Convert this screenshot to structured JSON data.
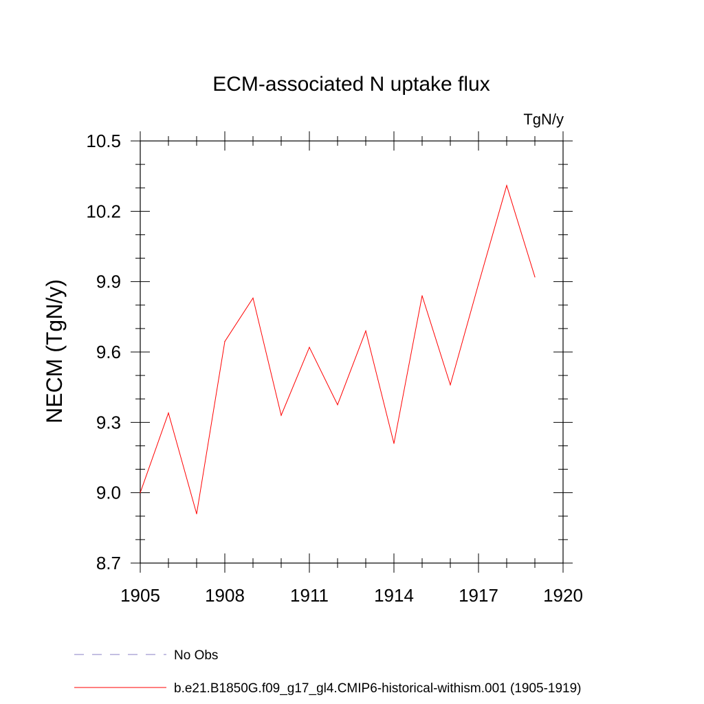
{
  "chart_data": {
    "type": "line",
    "title": "ECM-associated N uptake flux",
    "units_label": "TgN/y",
    "ylabel": "NECM  (TgN/y)",
    "xlabel": "",
    "xlim": [
      1905,
      1920
    ],
    "ylim": [
      8.7,
      10.5
    ],
    "x_ticks": [
      1905,
      1908,
      1911,
      1914,
      1917,
      1920
    ],
    "x_tick_labels": [
      "1905",
      "1908",
      "1911",
      "1914",
      "1917",
      "1920"
    ],
    "y_ticks": [
      8.7,
      9.0,
      9.3,
      9.6,
      9.9,
      10.2,
      10.5
    ],
    "y_tick_labels": [
      "8.7",
      "9.0",
      "9.3",
      "9.6",
      "9.9",
      "10.2",
      "10.5"
    ],
    "grid": false,
    "x": [
      1905,
      1906,
      1907,
      1908,
      1909,
      1910,
      1911,
      1912,
      1913,
      1914,
      1915,
      1916,
      1917,
      1918,
      1919
    ],
    "series": [
      {
        "name": "b.e21.B1850G.f09_g17_gl4.CMIP6-historical-withism.001 (1905-1919)",
        "color": "#ff0000",
        "style": "solid",
        "values": [
          9.0,
          9.34,
          8.91,
          9.645,
          9.83,
          9.33,
          9.62,
          9.375,
          9.69,
          9.21,
          9.84,
          9.46,
          9.89,
          10.31,
          9.92
        ]
      }
    ],
    "legend": {
      "placement": "bottom",
      "entries": [
        {
          "label": "No Obs",
          "color": "#8a7fc4",
          "style": "dashed"
        },
        {
          "label": "b.e21.B1850G.f09_g17_gl4.CMIP6-historical-withism.001 (1905-1919)",
          "color": "#ff0000",
          "style": "solid"
        }
      ]
    }
  }
}
